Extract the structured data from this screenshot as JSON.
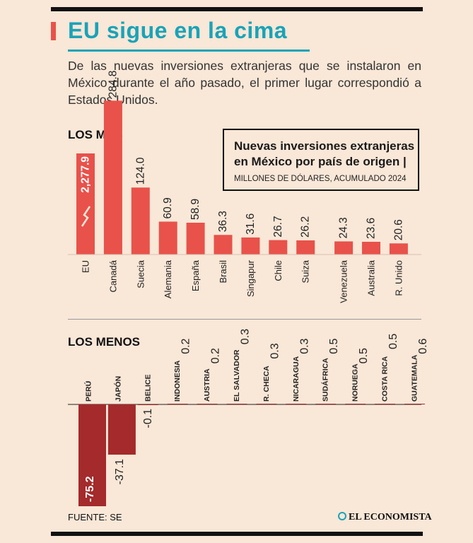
{
  "header": {
    "title": "EU sigue en la cima",
    "subtitle": "De las nuevas inversiones extranjeras que se instalaron en México durante el año pasado, el primer lugar correspondió a Estados Unidos."
  },
  "legend": {
    "title": "Nuevas inversiones extranjeras en México por país de origen |",
    "unit": "MILLONES DE DÓLARES, ACUMULADO 2024"
  },
  "footer": {
    "source": "FUENTE: SE",
    "brand": "EL ECONOMISTA"
  },
  "colors": {
    "top_bar": "#e8524a",
    "bottom_bar": "#a42a2b",
    "accent": "#1aa3b8"
  },
  "chart_data": [
    {
      "type": "bar",
      "title": "LOS MÁS",
      "categories": [
        "EU",
        "Canadá",
        "Suecia",
        "Alemania",
        "España",
        "Brasil",
        "Singapur",
        "Chile",
        "Suiza",
        "Venezuela",
        "Australia",
        "R. Unido"
      ],
      "values": [
        2277.9,
        284.8,
        124.0,
        60.9,
        58.9,
        36.3,
        31.6,
        26.7,
        26.2,
        24.3,
        23.6,
        20.6
      ],
      "labels": [
        "2,277.9",
        "284.8",
        "124.0",
        "60.9",
        "58.9",
        "36.3",
        "31.6",
        "26.7",
        "26.2",
        "24.3",
        "23.6",
        "20.6"
      ],
      "axis_break": "EU",
      "unit": "Millones de dólares"
    },
    {
      "type": "bar",
      "title": "LOS MENOS",
      "categories": [
        "PERÚ",
        "JAPÓN",
        "BELICE",
        "INDONESIA",
        "AUSTRIA",
        "EL SALVADOR",
        "R. CHECA",
        "NICARAGUA",
        "SUDÁFRICA",
        "NORUEGA",
        "COSTA RICA",
        "GUATEMALA"
      ],
      "values": [
        -75.2,
        -37.1,
        -0.1,
        0.2,
        0.2,
        0.3,
        0.3,
        0.3,
        0.5,
        0.5,
        0.5,
        0.6
      ],
      "labels": [
        "-75.2",
        "-37.1",
        "-0.1",
        "0.2",
        "0.2",
        "0.3",
        "0.3",
        "0.3",
        "0.5",
        "0.5",
        "0.5",
        "0.6"
      ],
      "unit": "Millones de dólares"
    }
  ]
}
